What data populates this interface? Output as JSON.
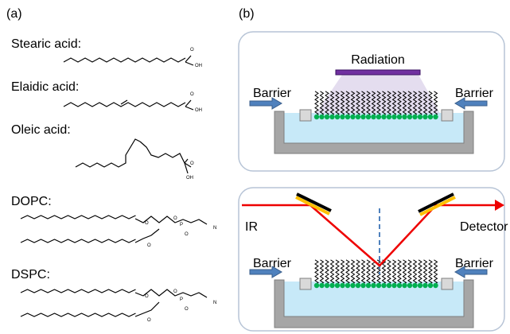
{
  "panel_a": {
    "label": "(a)",
    "molecules": [
      {
        "name": "Stearic acid:",
        "atoms": [
          "O",
          "OH"
        ]
      },
      {
        "name": "Elaidic acid:",
        "atoms": [
          "O",
          "OH"
        ]
      },
      {
        "name": "Oleic acid:",
        "atoms": [
          "O",
          "OH"
        ]
      },
      {
        "name": "DOPC:",
        "atoms": [
          "O",
          "O",
          "O",
          "P",
          "O",
          "N"
        ]
      },
      {
        "name": "DSPC:",
        "atoms": [
          "O",
          "O",
          "O",
          "P",
          "O",
          "N"
        ]
      }
    ]
  },
  "panel_b": {
    "label": "(b)",
    "top": {
      "radiation": "Radiation",
      "barrier_left": "Barrier",
      "barrier_right": "Barrier"
    },
    "bottom": {
      "source": "IR",
      "detector": "Detector",
      "barrier_left": "Barrier",
      "barrier_right": "Barrier"
    }
  }
}
